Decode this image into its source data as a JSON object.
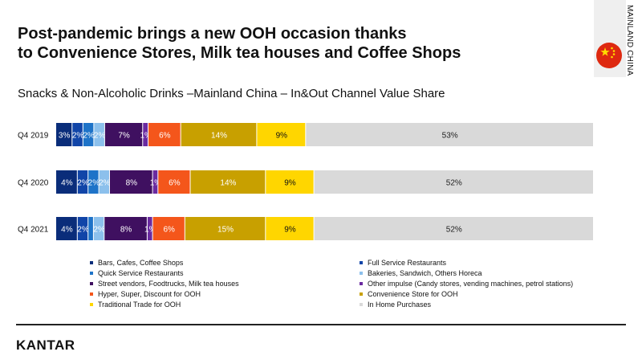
{
  "title": {
    "line1": "Post-pandemic brings a new OOH occasion thanks",
    "line2": "to Convenience Stores, Milk tea houses and Coffee Shops"
  },
  "subtitle": "Snacks & Non-Alcoholic Drinks –Mainland China – In&Out Channel Value Share",
  "region_label": "MAINLAND CHINA",
  "logo": "KANTAR",
  "colors": {
    "flag_red": "#de2910",
    "flag_star": "#ffde00",
    "region_strip": "#efefef"
  },
  "chart_data": {
    "type": "bar",
    "orientation": "horizontal",
    "stacked": true,
    "normalized": true,
    "categories": [
      "Q4 2019",
      "Q4 2020",
      "Q4 2021"
    ],
    "series": [
      {
        "name": "Bars, Cafes, Coffee Shops",
        "color": "#0a2d7a",
        "values": [
          3,
          4,
          4
        ],
        "labels": [
          "3%",
          "4%",
          "4%"
        ]
      },
      {
        "name": "Full Service Restaurants",
        "color": "#1145a8",
        "values": [
          2,
          2,
          2
        ],
        "labels": [
          "2%",
          "2%",
          "2%"
        ]
      },
      {
        "name": "Quick Service Restaurants",
        "color": "#1e73c8",
        "values": [
          2,
          2,
          1
        ],
        "labels": [
          "2%",
          "2%",
          ""
        ]
      },
      {
        "name": "Bakeries, Sandwich, Others Horeca",
        "color": "#8cc0ec",
        "values": [
          2,
          2,
          2
        ],
        "labels": [
          "2%",
          "2%",
          "2%"
        ]
      },
      {
        "name": "Street vendors, Foodtrucks, Milk tea houses",
        "color": "#3f1060",
        "values": [
          7,
          8,
          8
        ],
        "labels": [
          "7%",
          "8%",
          "8%"
        ]
      },
      {
        "name": "Other impulse (Candy stores, vending machines, petrol stations)",
        "color": "#6a2aa0",
        "values": [
          1,
          1,
          1
        ],
        "labels": [
          "1%",
          "1%",
          "1%"
        ]
      },
      {
        "name": "Hyper, Super, Discount for OOH",
        "color": "#f4561b",
        "values": [
          6,
          6,
          6
        ],
        "labels": [
          "6%",
          "6%",
          "6%"
        ]
      },
      {
        "name": "Convenience Store for OOH",
        "color": "#c8a000",
        "values": [
          14,
          14,
          15
        ],
        "labels": [
          "14%",
          "14%",
          "15%"
        ]
      },
      {
        "name": "Traditional Trade for OOH",
        "color": "#ffd600",
        "values": [
          9,
          9,
          9
        ],
        "labels": [
          "9%",
          "9%",
          "9%"
        ]
      },
      {
        "name": "In Home Purchases",
        "color": "#d9d9d9",
        "values": [
          53,
          52,
          52
        ],
        "labels": [
          "53%",
          "52%",
          "52%"
        ]
      }
    ],
    "label_colors": [
      "#ffffff",
      "#ffffff",
      "#ffffff",
      "#ffffff",
      "#ffffff",
      "#ffffff",
      "#ffffff",
      "#ffffff",
      "#111111",
      "#222222"
    ],
    "xlim": [
      0,
      100
    ],
    "grid": false,
    "legend": "bottom"
  }
}
